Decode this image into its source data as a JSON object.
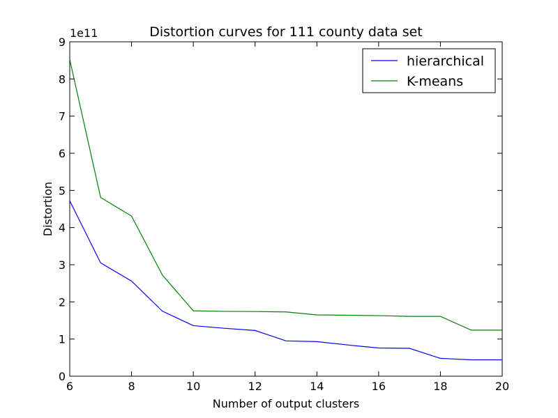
{
  "chart_data": {
    "type": "line",
    "title": "Distortion curves for 111 county data set",
    "xlabel": "Number of output clusters",
    "ylabel": "Distortion",
    "y_offset_label": "1e11",
    "xlim": [
      6,
      20
    ],
    "ylim": [
      0,
      9
    ],
    "x_ticks": [
      6,
      8,
      10,
      12,
      14,
      16,
      18,
      20
    ],
    "y_ticks": [
      0,
      1,
      2,
      3,
      4,
      5,
      6,
      7,
      8,
      9
    ],
    "grid": false,
    "legend_position": "top-right",
    "x": [
      6,
      7,
      8,
      9,
      10,
      11,
      12,
      13,
      14,
      15,
      16,
      17,
      18,
      19,
      20
    ],
    "series": [
      {
        "name": "hierarchical",
        "color": "#0000ff",
        "values": [
          4.72,
          3.05,
          2.56,
          1.75,
          1.36,
          1.29,
          1.23,
          0.95,
          0.93,
          0.84,
          0.76,
          0.75,
          0.48,
          0.44,
          0.44
        ]
      },
      {
        "name": "K-means",
        "color": "#008000",
        "values": [
          8.52,
          4.81,
          4.31,
          2.72,
          1.76,
          1.745,
          1.74,
          1.73,
          1.65,
          1.64,
          1.63,
          1.61,
          1.61,
          1.24,
          1.24
        ]
      }
    ]
  }
}
